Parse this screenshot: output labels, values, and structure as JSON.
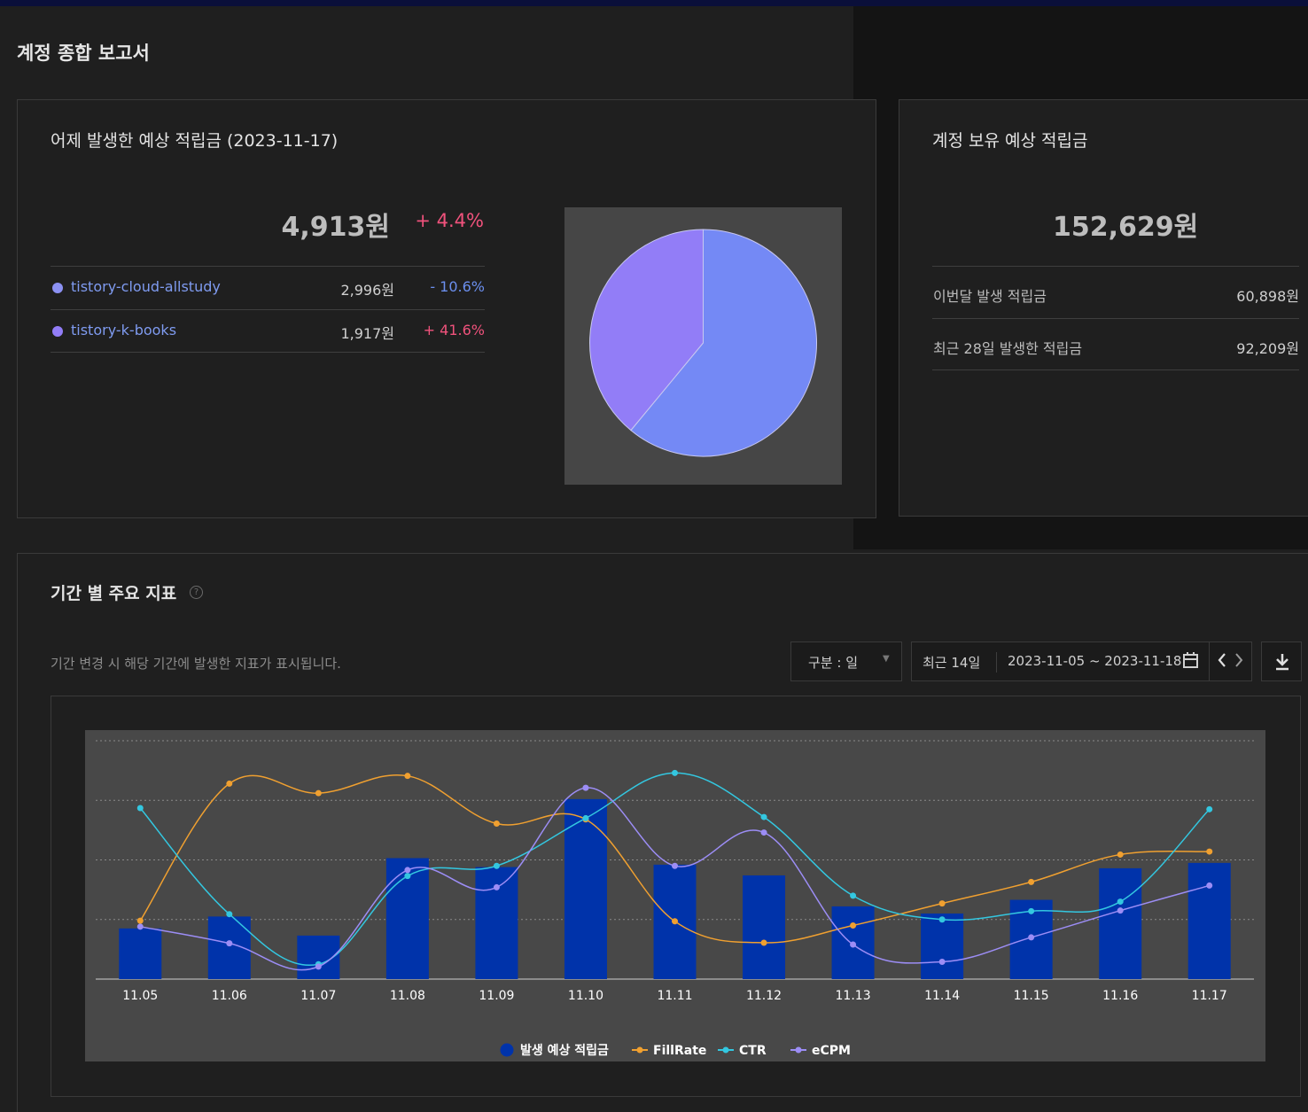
{
  "page_title": "계정 종합 보고서",
  "yesterday_card": {
    "title": "어제 발생한 예상 적립금 (2023-11-17)",
    "total": "4,913원",
    "change": "+ 4.4%",
    "rows": [
      {
        "name": "tistory-cloud-allstudy",
        "value": "2,996원",
        "change": "- 10.6%"
      },
      {
        "name": "tistory-k-books",
        "value": "1,917원",
        "change": "+ 41.6%"
      }
    ],
    "pie_shares": [
      {
        "name": "tistory-cloud-allstudy",
        "share": 0.61,
        "color": "#7489f5"
      },
      {
        "name": "tistory-k-books",
        "share": 0.39,
        "color": "#927df7"
      }
    ]
  },
  "balance_card": {
    "title": "계정 보유 예상 적립금",
    "total": "152,629원",
    "rows": [
      {
        "label": "이번달 발생 적립금",
        "value": "60,898원"
      },
      {
        "label": "최근 28일 발생한 적립금",
        "value": "92,209원"
      }
    ]
  },
  "metrics_card": {
    "title": "기간 별 주요 지표",
    "description": "기간 변경 시 해당 기간에 발생한 지표가 표시됩니다.",
    "unit_select": "구분 : 일",
    "range_label": "최근 14일",
    "date_range": "2023-11-05 ~ 2023-11-18",
    "icons": [
      "help-icon",
      "chevron-down-icon",
      "calendar-icon",
      "chevron-left-icon",
      "chevron-right-icon",
      "download-icon"
    ]
  },
  "chart_data": {
    "type": "bar",
    "categories": [
      "11.05",
      "11.06",
      "11.07",
      "11.08",
      "11.09",
      "11.10",
      "11.11",
      "11.12",
      "11.13",
      "11.14",
      "11.15",
      "11.16",
      "11.17"
    ],
    "ylim": [
      0,
      4
    ],
    "grid": true,
    "legend_position": "bottom-center",
    "series": [
      {
        "name": "발생 예상 적립금",
        "type": "bar",
        "color": "#0033aa",
        "values": [
          0.85,
          1.05,
          0.73,
          2.03,
          1.88,
          3.02,
          1.92,
          1.74,
          1.22,
          1.1,
          1.33,
          1.86,
          1.95
        ]
      },
      {
        "name": "FillRate",
        "type": "line",
        "color": "#f0a030",
        "values": [
          0.98,
          3.28,
          3.12,
          3.41,
          2.61,
          2.68,
          0.97,
          0.61,
          0.9,
          1.27,
          1.63,
          2.09,
          2.14
        ]
      },
      {
        "name": "CTR",
        "type": "line",
        "color": "#33c7e0",
        "values": [
          2.87,
          1.09,
          0.25,
          1.73,
          1.9,
          2.7,
          3.46,
          2.72,
          1.4,
          1.0,
          1.14,
          1.3,
          2.85
        ]
      },
      {
        "name": "eCPM",
        "type": "line",
        "color": "#9c8df5",
        "values": [
          0.88,
          0.6,
          0.21,
          1.83,
          1.54,
          3.21,
          1.9,
          2.46,
          0.58,
          0.29,
          0.7,
          1.15,
          1.57
        ]
      }
    ]
  }
}
